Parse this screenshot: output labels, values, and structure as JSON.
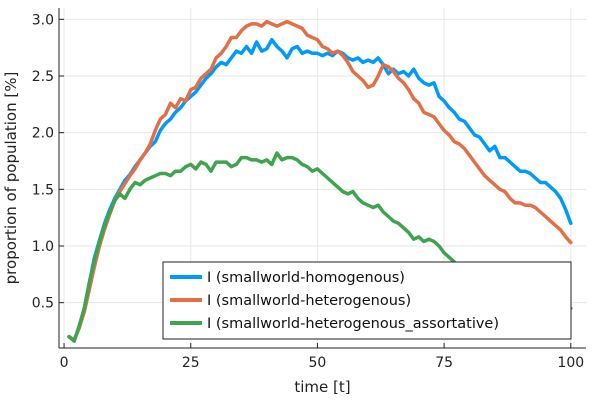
{
  "chart_data": {
    "type": "line",
    "xlabel": "time [t]",
    "ylabel": "proportion of population [%]",
    "xlim": [
      -1,
      103
    ],
    "ylim": [
      0.1,
      3.1
    ],
    "xticks": [
      0,
      25,
      50,
      75,
      100
    ],
    "yticks": [
      0.5,
      1.0,
      1.5,
      2.0,
      2.5,
      3.0
    ],
    "xtick_labels": [
      "0",
      "25",
      "50",
      "75",
      "100"
    ],
    "ytick_labels": [
      "0.5",
      "1.0",
      "1.5",
      "2.0",
      "2.5",
      "3.0"
    ],
    "grid": true,
    "legend_position": "bottom-right",
    "series": [
      {
        "name": "I (smallworld-homogenous)",
        "color": "#009AFA",
        "x": [
          1,
          2,
          3,
          4,
          5,
          6,
          7,
          8,
          9,
          10,
          11,
          12,
          13,
          14,
          15,
          16,
          17,
          18,
          19,
          20,
          21,
          22,
          23,
          24,
          25,
          26,
          27,
          28,
          29,
          30,
          31,
          32,
          33,
          34,
          35,
          36,
          37,
          38,
          39,
          40,
          41,
          42,
          43,
          44,
          45,
          46,
          47,
          48,
          49,
          50,
          51,
          52,
          53,
          54,
          55,
          56,
          57,
          58,
          59,
          60,
          61,
          62,
          63,
          64,
          65,
          66,
          67,
          68,
          69,
          70,
          71,
          72,
          73,
          74,
          75,
          76,
          77,
          78,
          79,
          80,
          81,
          82,
          83,
          84,
          85,
          86,
          87,
          88,
          89,
          90,
          91,
          92,
          93,
          94,
          95,
          96,
          97,
          98,
          99,
          100
        ],
        "y": [
          0.2,
          0.17,
          0.28,
          0.45,
          0.68,
          0.9,
          1.05,
          1.2,
          1.32,
          1.42,
          1.5,
          1.58,
          1.63,
          1.7,
          1.76,
          1.82,
          1.88,
          1.92,
          2.02,
          2.08,
          2.12,
          2.18,
          2.22,
          2.28,
          2.32,
          2.36,
          2.42,
          2.48,
          2.52,
          2.58,
          2.62,
          2.6,
          2.66,
          2.72,
          2.7,
          2.76,
          2.7,
          2.8,
          2.72,
          2.74,
          2.82,
          2.76,
          2.72,
          2.66,
          2.74,
          2.76,
          2.7,
          2.72,
          2.7,
          2.7,
          2.68,
          2.7,
          2.68,
          2.72,
          2.7,
          2.66,
          2.64,
          2.66,
          2.62,
          2.64,
          2.62,
          2.66,
          2.6,
          2.52,
          2.56,
          2.52,
          2.54,
          2.5,
          2.56,
          2.48,
          2.44,
          2.42,
          2.44,
          2.32,
          2.28,
          2.22,
          2.18,
          2.12,
          2.1,
          2.04,
          1.98,
          1.96,
          1.9,
          1.84,
          1.88,
          1.78,
          1.78,
          1.74,
          1.7,
          1.66,
          1.66,
          1.64,
          1.6,
          1.56,
          1.56,
          1.52,
          1.48,
          1.42,
          1.32,
          1.2
        ]
      },
      {
        "name": "I (smallworld-heterogenous)",
        "color": "#E26F46",
        "x": [
          1,
          2,
          3,
          4,
          5,
          6,
          7,
          8,
          9,
          10,
          11,
          12,
          13,
          14,
          15,
          16,
          17,
          18,
          19,
          20,
          21,
          22,
          23,
          24,
          25,
          26,
          27,
          28,
          29,
          30,
          31,
          32,
          33,
          34,
          35,
          36,
          37,
          38,
          39,
          40,
          41,
          42,
          43,
          44,
          45,
          46,
          47,
          48,
          49,
          50,
          51,
          52,
          53,
          54,
          55,
          56,
          57,
          58,
          59,
          60,
          61,
          62,
          63,
          64,
          65,
          66,
          67,
          68,
          69,
          70,
          71,
          72,
          73,
          74,
          75,
          76,
          77,
          78,
          79,
          80,
          81,
          82,
          83,
          84,
          85,
          86,
          87,
          88,
          89,
          90,
          91,
          92,
          93,
          94,
          95,
          96,
          97,
          98,
          99,
          100
        ],
        "y": [
          0.2,
          0.17,
          0.28,
          0.42,
          0.62,
          0.82,
          1.0,
          1.15,
          1.28,
          1.4,
          1.48,
          1.55,
          1.62,
          1.68,
          1.76,
          1.82,
          1.9,
          2.02,
          2.12,
          2.16,
          2.26,
          2.22,
          2.3,
          2.28,
          2.38,
          2.4,
          2.48,
          2.52,
          2.56,
          2.66,
          2.7,
          2.76,
          2.84,
          2.84,
          2.9,
          2.94,
          2.96,
          2.96,
          2.94,
          2.98,
          2.96,
          2.94,
          2.96,
          2.98,
          2.96,
          2.94,
          2.92,
          2.86,
          2.84,
          2.82,
          2.76,
          2.74,
          2.7,
          2.72,
          2.68,
          2.62,
          2.54,
          2.5,
          2.46,
          2.4,
          2.42,
          2.5,
          2.6,
          2.58,
          2.54,
          2.48,
          2.44,
          2.38,
          2.3,
          2.26,
          2.18,
          2.16,
          2.14,
          2.08,
          2.02,
          1.98,
          1.92,
          1.9,
          1.86,
          1.8,
          1.74,
          1.68,
          1.62,
          1.58,
          1.54,
          1.5,
          1.48,
          1.42,
          1.38,
          1.38,
          1.36,
          1.36,
          1.34,
          1.3,
          1.26,
          1.22,
          1.18,
          1.14,
          1.08,
          1.03
        ]
      },
      {
        "name": "I (smallworld-heterogenous_assortative)",
        "color": "#3EA44E",
        "x": [
          1,
          2,
          3,
          4,
          5,
          6,
          7,
          8,
          9,
          10,
          11,
          12,
          13,
          14,
          15,
          16,
          17,
          18,
          19,
          20,
          21,
          22,
          23,
          24,
          25,
          26,
          27,
          28,
          29,
          30,
          31,
          32,
          33,
          34,
          35,
          36,
          37,
          38,
          39,
          40,
          41,
          42,
          43,
          44,
          45,
          46,
          47,
          48,
          49,
          50,
          51,
          52,
          53,
          54,
          55,
          56,
          57,
          58,
          59,
          60,
          61,
          62,
          63,
          64,
          65,
          66,
          67,
          68,
          69,
          70,
          71,
          72,
          73,
          74,
          75,
          76,
          77,
          78,
          79,
          80,
          81,
          82,
          83,
          84,
          85,
          86,
          87,
          88,
          89,
          90,
          91,
          92,
          93,
          94,
          95,
          96,
          97,
          98,
          99,
          100
        ],
        "y": [
          0.2,
          0.16,
          0.3,
          0.45,
          0.68,
          0.88,
          1.04,
          1.18,
          1.3,
          1.4,
          1.46,
          1.42,
          1.5,
          1.56,
          1.54,
          1.58,
          1.6,
          1.62,
          1.64,
          1.64,
          1.62,
          1.66,
          1.66,
          1.7,
          1.72,
          1.68,
          1.74,
          1.72,
          1.66,
          1.74,
          1.74,
          1.74,
          1.7,
          1.72,
          1.78,
          1.78,
          1.76,
          1.76,
          1.74,
          1.76,
          1.72,
          1.82,
          1.76,
          1.78,
          1.78,
          1.76,
          1.72,
          1.7,
          1.66,
          1.68,
          1.64,
          1.6,
          1.56,
          1.52,
          1.48,
          1.46,
          1.48,
          1.42,
          1.38,
          1.36,
          1.34,
          1.36,
          1.3,
          1.26,
          1.22,
          1.2,
          1.16,
          1.12,
          1.06,
          1.08,
          1.04,
          1.06,
          1.04,
          1.0,
          0.94,
          0.9,
          0.86,
          0.8,
          0.76,
          0.72,
          0.68,
          0.64,
          0.6,
          0.58,
          0.56,
          0.52,
          0.52,
          0.5,
          0.48,
          0.48,
          0.46,
          0.44,
          0.44,
          0.42,
          0.4,
          0.4,
          0.42,
          0.44,
          0.44,
          0.45
        ]
      }
    ]
  }
}
